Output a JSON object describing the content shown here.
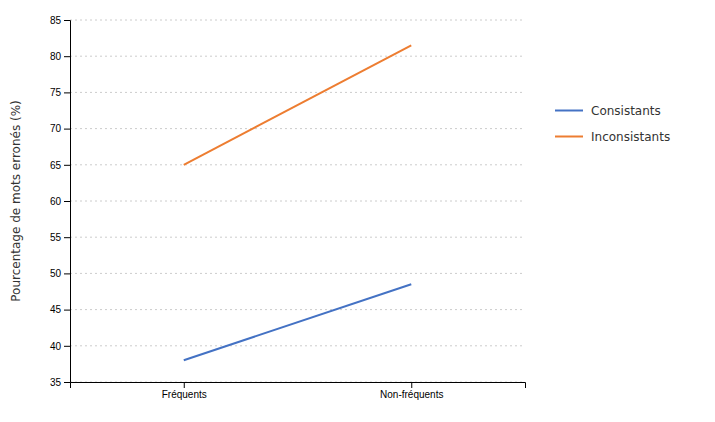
{
  "chart_data": {
    "type": "line",
    "categories": [
      "Fréquents",
      "Non-fréquents"
    ],
    "series": [
      {
        "name": "Consistants",
        "color": "#4472C4",
        "values": [
          38.0,
          48.5
        ]
      },
      {
        "name": "Inconsistants",
        "color": "#ED7D31",
        "values": [
          65.0,
          81.5
        ]
      }
    ],
    "ylabel": "Pourcentage de mots erronés (%)",
    "ylim": [
      35,
      85
    ],
    "yticks": [
      35,
      40,
      45,
      50,
      55,
      60,
      65,
      70,
      75,
      80,
      85
    ],
    "grid": true,
    "legend": "right"
  }
}
